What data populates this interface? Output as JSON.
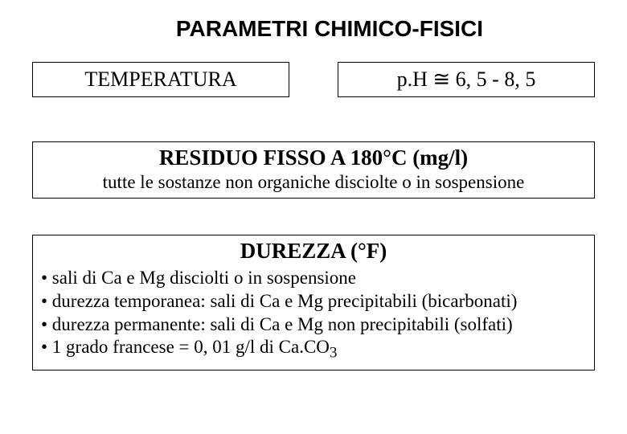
{
  "title": "PARAMETRI CHIMICO-FISICI",
  "top_row": {
    "temperatura": "TEMPERATURA",
    "ph": "p.H ≅ 6, 5 - 8, 5"
  },
  "residuo": {
    "heading": "RESIDUO FISSO A 180°C (mg/l)",
    "sub": "tutte le sostanze non organiche disciolte o in sospensione"
  },
  "durezza": {
    "heading": "DUREZZA (°F)",
    "items": [
      "• sali di Ca e Mg disciolti o in sospensione",
      "• durezza temporanea: sali di Ca e Mg precipitabili (bicarbonati)",
      "• durezza permanente: sali di Ca e Mg non precipitabili (solfati)",
      "• 1 grado francese = 0, 01 g/l di Ca.CO"
    ],
    "subscript": "3"
  },
  "colors": {
    "background": "#ffffff",
    "text": "#000000",
    "border": "#000000"
  },
  "fonts": {
    "title_family": "Arial",
    "body_family": "Times New Roman",
    "title_size": 28,
    "heading_size": 27,
    "box_text_size": 26,
    "sub_size": 23,
    "item_size": 23
  }
}
